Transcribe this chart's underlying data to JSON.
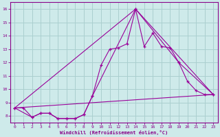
{
  "xlabel": "Windchill (Refroidissement éolien,°C)",
  "bg_color": "#ceeaea",
  "grid_color": "#aacfcf",
  "line_color": "#990099",
  "xlim": [
    -0.5,
    23.5
  ],
  "ylim": [
    7.5,
    16.5
  ],
  "yticks": [
    8,
    9,
    10,
    11,
    12,
    13,
    14,
    15,
    16
  ],
  "xticks": [
    0,
    1,
    2,
    3,
    4,
    5,
    6,
    7,
    8,
    9,
    10,
    11,
    12,
    13,
    14,
    15,
    16,
    17,
    18,
    19,
    20,
    21,
    22,
    23
  ],
  "series1_x": [
    0,
    1,
    2,
    3,
    4,
    5,
    6,
    7,
    8,
    9,
    10,
    11,
    12,
    13,
    14,
    15,
    16,
    17,
    18,
    19,
    20,
    21,
    22,
    23
  ],
  "series1_y": [
    8.6,
    8.6,
    7.9,
    8.2,
    8.2,
    7.8,
    7.8,
    7.8,
    8.1,
    9.5,
    11.8,
    13.0,
    13.1,
    13.4,
    16.0,
    13.2,
    14.2,
    13.2,
    13.1,
    12.0,
    10.6,
    9.9,
    9.6,
    9.6
  ],
  "series2_x": [
    0,
    2,
    3,
    4,
    5,
    6,
    7,
    8,
    9,
    14,
    19,
    23
  ],
  "series2_y": [
    8.6,
    7.9,
    8.2,
    8.2,
    7.8,
    7.8,
    7.8,
    8.1,
    9.5,
    16.0,
    12.0,
    9.6
  ],
  "series3_x": [
    0,
    23
  ],
  "series3_y": [
    8.6,
    9.6
  ],
  "series4_x": [
    0,
    14,
    23
  ],
  "series4_y": [
    8.6,
    16.0,
    9.6
  ]
}
